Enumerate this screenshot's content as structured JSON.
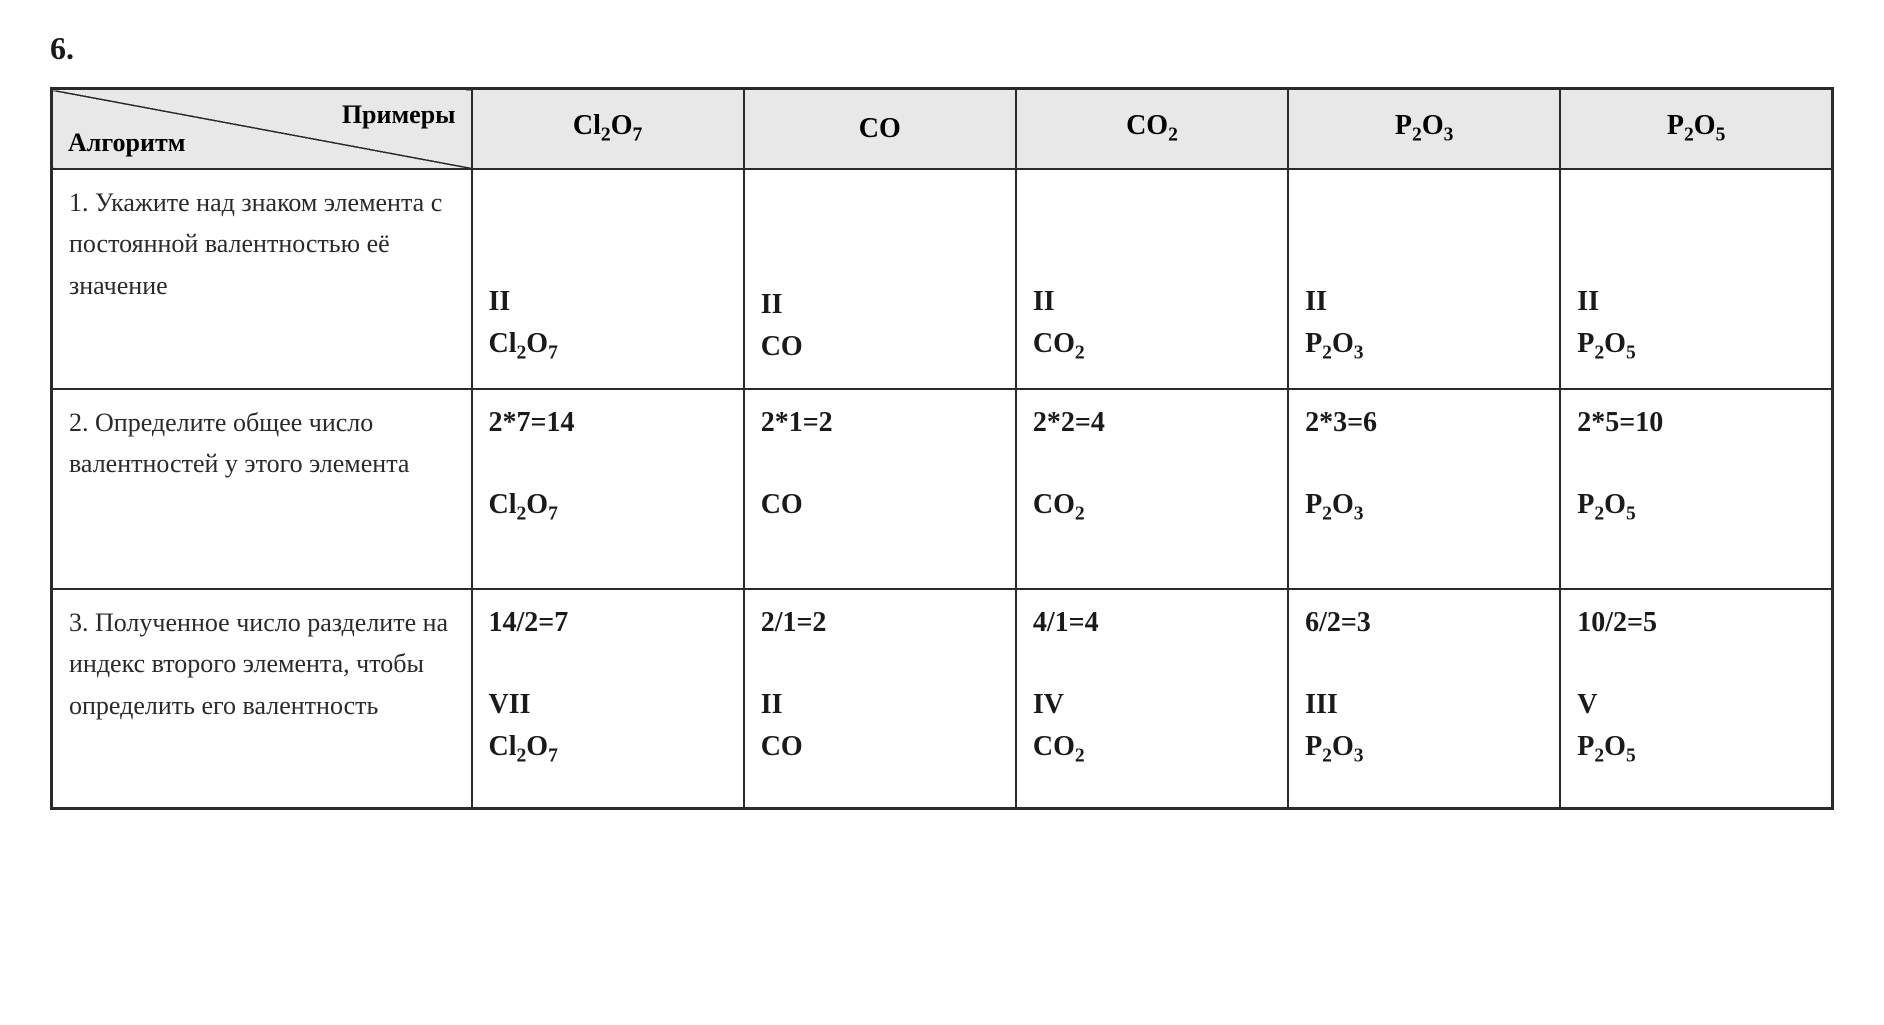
{
  "sectionNumber": "6.",
  "headers": {
    "topLabel": "Примеры",
    "bottomLabel": "Алгоритм",
    "col1": "Cl₂O₇",
    "col2": "CO",
    "col3": "CO₂",
    "col4": "P₂O₃",
    "col5": "P₂O₅"
  },
  "rows": {
    "r1": {
      "algo": "1. Укажите над знаком элемента с постоянной валентностью её значение",
      "c1": {
        "roman": "II",
        "formula": "Cl₂O₇"
      },
      "c2": {
        "roman": "II",
        "formula": "CO"
      },
      "c3": {
        "roman": "II",
        "formula": "CO₂"
      },
      "c4": {
        "roman": "II",
        "formula": "P₂O₃"
      },
      "c5": {
        "roman": "II",
        "formula": "P₂O₅"
      }
    },
    "r2": {
      "algo": "2. Определите общее число валентностей у этого элемента",
      "c1": {
        "calc": "2*7=14",
        "formula": "Cl₂O₇"
      },
      "c2": {
        "calc": "2*1=2",
        "formula": "CO"
      },
      "c3": {
        "calc": "2*2=4",
        "formula": "CO₂"
      },
      "c4": {
        "calc": "2*3=6",
        "formula": "P₂O₃"
      },
      "c5": {
        "calc": "2*5=10",
        "formula": "P₂O₅"
      }
    },
    "r3": {
      "algo": "3. Полученное число разделите на индекс второго элемента, чтобы определить его валентность",
      "c1": {
        "calc": "14/2=7",
        "roman": "VII",
        "formula": "Cl₂O₇"
      },
      "c2": {
        "calc": "2/1=2",
        "roman": "II",
        "formula": "CO"
      },
      "c3": {
        "calc": "4/1=4",
        "roman": "IV",
        "formula": "CO₂"
      },
      "c4": {
        "calc": "6/2=3",
        "roman": "III",
        "formula": "P₂O₃"
      },
      "c5": {
        "calc": "10/2=5",
        "roman": "V",
        "formula": "P₂O₅"
      }
    }
  },
  "styling": {
    "backgroundColor": "#ffffff",
    "headerBackground": "#e8e8e8",
    "borderColor": "#2a2a2a",
    "textColor": "#1a1a1a",
    "algoFontSize": 26,
    "dataFontSize": 28,
    "headerFontSize": 28,
    "sectionFontSize": 32,
    "fontFamily": "Georgia, Times New Roman, serif",
    "tableWidth": 1784,
    "algoColWidth": 420
  }
}
